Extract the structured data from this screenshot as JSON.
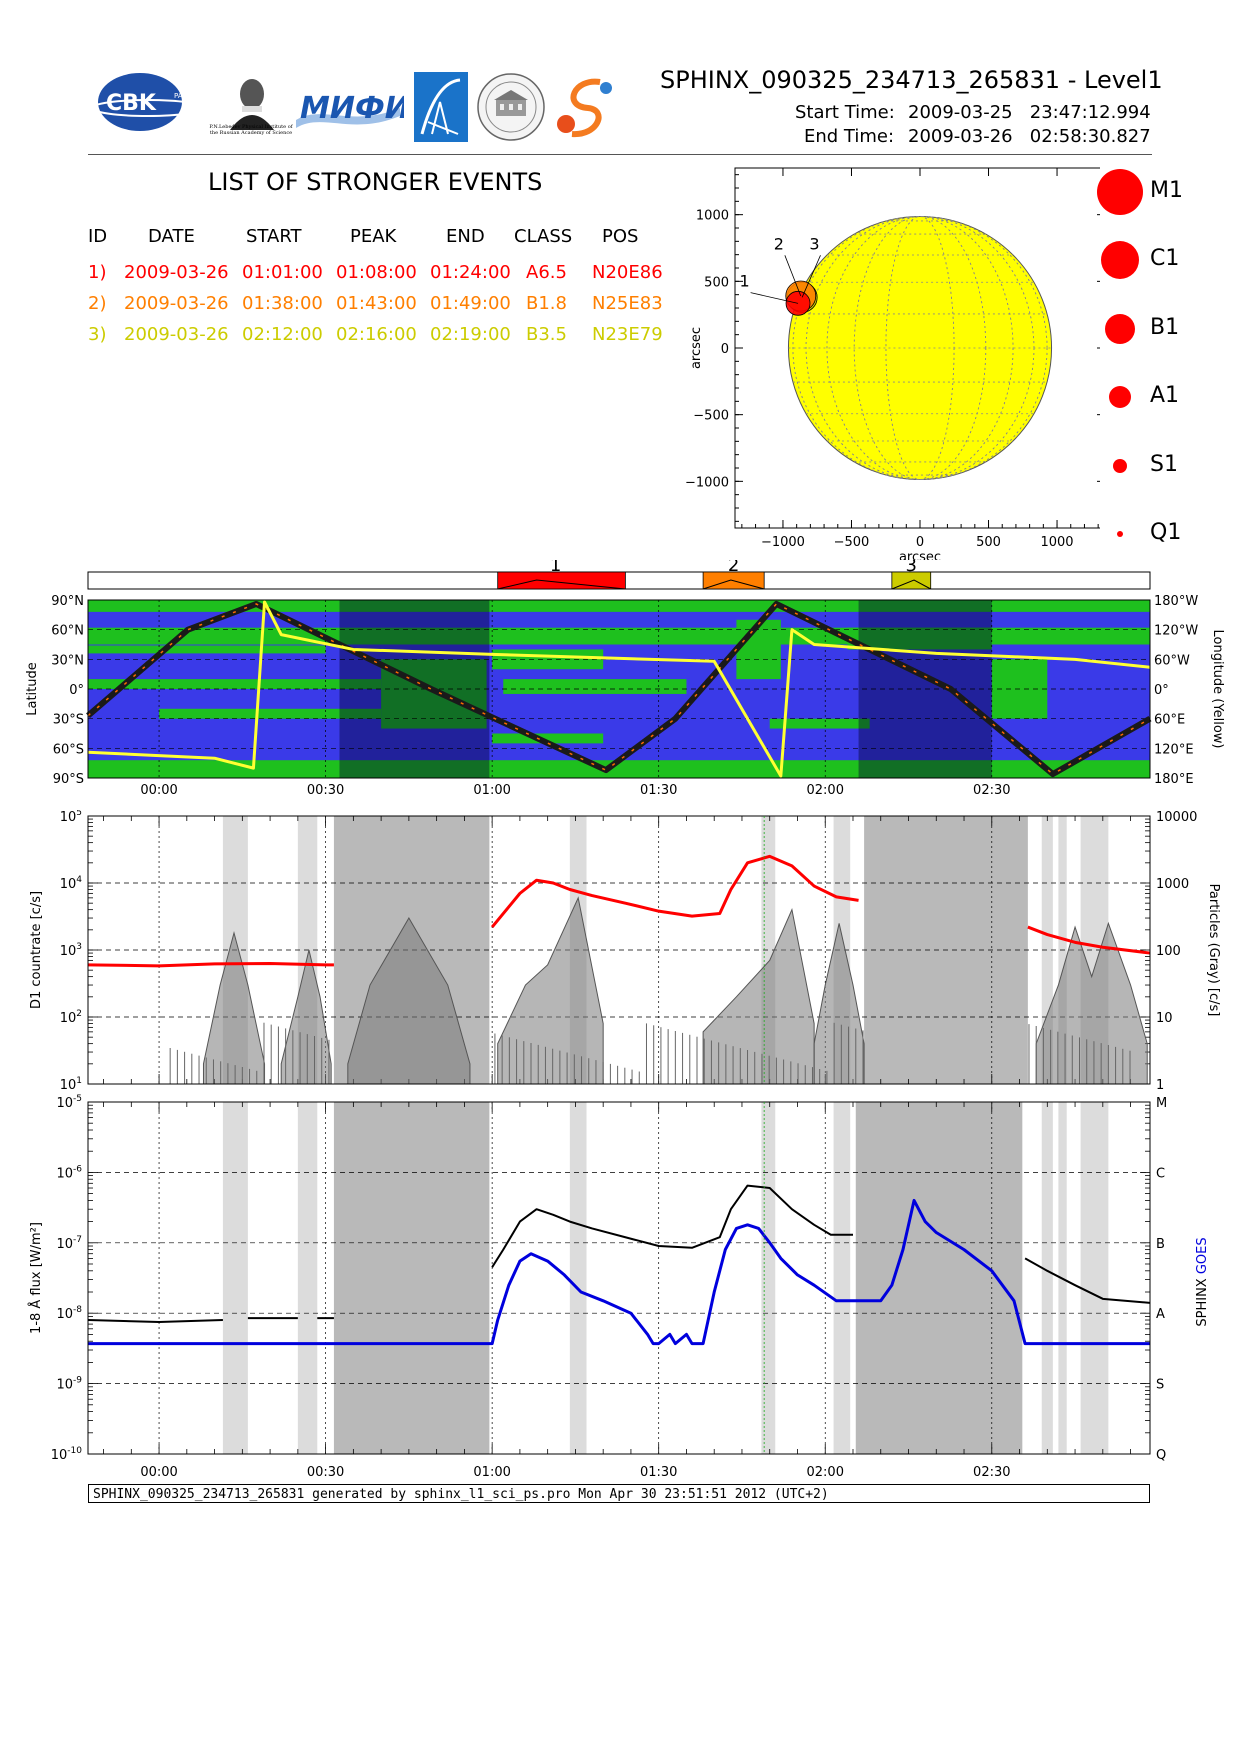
{
  "header": {
    "title": "SPHINX_090325_234713_265831 - Level1",
    "start_label": "Start Time:",
    "start_value": "2009-03-25   23:47:12.994",
    "end_label": "End Time:",
    "end_value": "2009-03-26   02:58:30.827"
  },
  "logos": {
    "cbk": "CBK",
    "cbk_small": "PAN",
    "lebedev_caption": "P.N.Lebedev Physical Institute of the Russian Academy of Science",
    "mifi": "MИФИ",
    "colors": {
      "cbk": "#1f4fa8",
      "mifi": "#1a56b0",
      "arrow": "#1a73c9"
    }
  },
  "events": {
    "title": "LIST OF STRONGER EVENTS",
    "columns": [
      "ID",
      "DATE",
      "START",
      "PEAK",
      "END",
      "CLASS",
      "POS"
    ],
    "rows": [
      {
        "id": "1)",
        "date": "2009-03-26",
        "start": "01:01:00",
        "peak": "01:08:00",
        "end": "01:24:00",
        "class": "A6.5",
        "pos": "N20E86",
        "color": "#ff0000"
      },
      {
        "id": "2)",
        "date": "2009-03-26",
        "start": "01:38:00",
        "peak": "01:43:00",
        "end": "01:49:00",
        "class": "B1.8",
        "pos": "N25E83",
        "color": "#ff7f00"
      },
      {
        "id": "3)",
        "date": "2009-03-26",
        "start": "02:12:00",
        "peak": "02:16:00",
        "end": "02:19:00",
        "class": "B3.5",
        "pos": "N23E79",
        "color": "#cccc00"
      }
    ]
  },
  "legend": {
    "classes": [
      {
        "label": "M1",
        "size": 46
      },
      {
        "label": "C1",
        "size": 38
      },
      {
        "label": "B1",
        "size": 30
      },
      {
        "label": "A1",
        "size": 22
      },
      {
        "label": "S1",
        "size": 14
      },
      {
        "label": "Q1",
        "size": 6
      }
    ]
  },
  "timeline": {
    "events": [
      {
        "id": "1",
        "start": 61.0,
        "peak": 68.0,
        "end": 84.0,
        "color": "#ff0000"
      },
      {
        "id": "2",
        "start": 98.0,
        "peak": 103.0,
        "end": 109.0,
        "color": "#ff7f00"
      },
      {
        "id": "3",
        "start": 132.0,
        "peak": 136.0,
        "end": 139.0,
        "color": "#cccc00"
      }
    ]
  },
  "footer": {
    "text": "SPHINX_090325_234713_265831 generated by sphinx_l1_sci_ps.pro Mon Apr 30 23:51:51 2012 (UTC+2)"
  },
  "chart_data": [
    {
      "type": "scatter",
      "name": "solar-disk-map",
      "xlabel": "arcsec",
      "ylabel": "arcsec",
      "xlim": [
        -1350,
        1350
      ],
      "ylim": [
        -1350,
        1350
      ],
      "xticks": [
        "-1000",
        "-500",
        "0",
        "500",
        "1000"
      ],
      "yticks": [
        "1000",
        "500",
        "0",
        "-500",
        "-1000"
      ],
      "disk_radius": 960,
      "disk_color": "#ffff00",
      "points": [
        {
          "label": "1",
          "x": -890,
          "y": 335,
          "size": 24,
          "color": "#ff0000"
        },
        {
          "label": "2",
          "x": -870,
          "y": 390,
          "size": 30,
          "color": "#ff7f00"
        },
        {
          "label": "3",
          "x": -860,
          "y": 380,
          "size": 30,
          "color": "#cccc00"
        }
      ],
      "labels": [
        {
          "text": "1",
          "x": -1280,
          "y": 460
        },
        {
          "text": "2",
          "x": -1030,
          "y": 740
        },
        {
          "text": "3",
          "x": -770,
          "y": 740
        }
      ]
    },
    {
      "type": "line",
      "name": "orbit-map",
      "x_unit": "minutes after 2009-03-26 00:00",
      "xlim": [
        -12.8,
        178.5
      ],
      "xticks": [
        "00:00",
        "00:30",
        "01:00",
        "01:30",
        "02:00",
        "02:30"
      ],
      "ylabel": "Latitude",
      "ylabel_right": "Longitude (Yellow)",
      "ylim": [
        -90,
        90
      ],
      "yticks": [
        "90°N",
        "60°N",
        "30°N",
        "0°",
        "30°S",
        "60°S",
        "90°S"
      ],
      "yticks_right": [
        "180°W",
        "120°W",
        "60°W",
        "0°",
        "60°E",
        "120°E",
        "180°E"
      ],
      "colors": {
        "ocean": "#3a3ae8",
        "land": "#1ec01e",
        "track": "#1a1a1a",
        "longitude": "#ffff33"
      },
      "track_lat": {
        "x": [
          -12.8,
          5.2,
          17.5,
          49.0,
          80.5,
          93.0,
          111.2,
          142.6,
          161.0,
          178.5
        ],
        "y": [
          -27,
          60,
          86,
          0,
          -82,
          -30,
          86,
          0,
          -86,
          -30
        ]
      },
      "longitude_curve": {
        "x": [
          -12.8,
          10,
          17,
          19,
          22,
          35,
          60,
          100,
          112,
          114,
          118,
          140,
          165,
          178.5
        ],
        "y": [
          -64,
          -70,
          -80,
          88,
          55,
          40,
          35,
          28,
          -88,
          60,
          45,
          36,
          30,
          22
        ]
      },
      "shaded": [
        [
          32.5,
          59.5
        ],
        [
          126.0,
          150.0
        ]
      ]
    },
    {
      "type": "line",
      "name": "d1-countrate",
      "x_unit": "minutes after 2009-03-26 00:00",
      "xlim": [
        -12.8,
        178.5
      ],
      "xticks": [
        "00:00",
        "00:30",
        "01:00",
        "01:30",
        "02:00",
        "02:30"
      ],
      "ylabel": "D1 countrate [c/s]",
      "ylabel_right": "Particles (Gray) [c/s]",
      "yscale": "log",
      "ylim": [
        10,
        100000
      ],
      "yticks": [
        "10^1",
        "10^2",
        "10^3",
        "10^4",
        "10^5"
      ],
      "yticks_right": [
        "1",
        "10",
        "100",
        "1000",
        "10000"
      ],
      "light_gray": [
        [
          11.5,
          16.0
        ],
        [
          25.0,
          28.5
        ],
        [
          74.0,
          77.0
        ],
        [
          108.5,
          111.0
        ],
        [
          121.5,
          124.5
        ],
        [
          159.0,
          161.0
        ],
        [
          162.0,
          163.5
        ],
        [
          166.0,
          171.0
        ]
      ],
      "dark_gray": [
        [
          31.5,
          59.5
        ],
        [
          127.0,
          156.5
        ]
      ],
      "series": [
        {
          "name": "red",
          "color": "#ff0000",
          "x": [
            -12.8,
            0,
            10,
            20,
            30,
            31.5
          ],
          "y": [
            600,
            580,
            620,
            630,
            600,
            600
          ]
        },
        {
          "name": "red",
          "color": "#ff0000",
          "x": [
            60,
            62,
            65,
            68,
            71,
            74,
            78,
            84,
            90,
            96,
            101,
            103,
            106,
            110,
            114,
            118,
            122,
            126
          ],
          "y": [
            2200,
            3500,
            7000,
            11000,
            10000,
            8000,
            6500,
            5000,
            3800,
            3200,
            3500,
            8000,
            20000,
            25000,
            18000,
            9000,
            6200,
            5500
          ]
        },
        {
          "name": "red",
          "color": "#ff0000",
          "x": [
            156.5,
            160,
            165,
            170,
            178.5
          ],
          "y": [
            2200,
            1700,
            1300,
            1100,
            900
          ]
        }
      ],
      "gray_bumps": [
        {
          "x": [
            8,
            11,
            13.5,
            16,
            19
          ],
          "y": [
            20,
            300,
            1800,
            300,
            20
          ]
        },
        {
          "x": [
            22,
            25,
            27,
            29,
            31
          ],
          "y": [
            20,
            200,
            1000,
            200,
            20
          ]
        },
        {
          "x": [
            34,
            38,
            45,
            52,
            56
          ],
          "y": [
            20,
            300,
            3000,
            300,
            20
          ]
        },
        {
          "x": [
            61,
            66,
            70,
            75.5,
            80
          ],
          "y": [
            40,
            300,
            600,
            6000,
            80
          ]
        },
        {
          "x": [
            98,
            104,
            110,
            114,
            118
          ],
          "y": [
            60,
            200,
            700,
            4000,
            80
          ]
        },
        {
          "x": [
            118,
            120,
            122.5,
            125,
            127
          ],
          "y": [
            40,
            300,
            2500,
            300,
            40
          ]
        },
        {
          "x": [
            158,
            162,
            165,
            168,
            171,
            175,
            178
          ],
          "y": [
            40,
            300,
            2200,
            400,
            2500,
            300,
            40
          ]
        }
      ]
    },
    {
      "type": "line",
      "name": "flux-1-8A",
      "x_unit": "minutes after 2009-03-26 00:00",
      "xlim": [
        -12.8,
        178.5
      ],
      "xticks": [
        "00:00",
        "00:30",
        "01:00",
        "01:30",
        "02:00",
        "02:30"
      ],
      "ylabel": "1-8 Å flux [W/m²]",
      "ylabel_right": "SPHINX GOES",
      "yscale": "log",
      "ylim": [
        1e-10,
        1e-05
      ],
      "yticks": [
        "10^-5",
        "10^-6",
        "10^-7",
        "10^-8",
        "10^-9",
        "10^-10"
      ],
      "yticks_right": [
        "M",
        "C",
        "B",
        "A",
        "S",
        "Q"
      ],
      "light_gray": [
        [
          11.5,
          16.0
        ],
        [
          25.0,
          28.5
        ],
        [
          74.0,
          77.0
        ],
        [
          108.5,
          111.0
        ],
        [
          121.5,
          124.5
        ],
        [
          159.0,
          161.0
        ],
        [
          162.0,
          163.5
        ],
        [
          166.0,
          171.0
        ]
      ],
      "dark_gray": [
        [
          31.5,
          59.5
        ],
        [
          125.5,
          155.5
        ]
      ],
      "series": [
        {
          "name": "SPHINX",
          "color": "#000000",
          "x": [
            -12.8,
            0,
            11.5
          ],
          "y": [
            8e-09,
            7.5e-09,
            8e-09
          ]
        },
        {
          "name": "SPHINX",
          "color": "#000000",
          "x": [
            16,
            25
          ],
          "y": [
            8.5e-09,
            8.5e-09
          ]
        },
        {
          "name": "SPHINX",
          "color": "#000000",
          "x": [
            28.5,
            31.5
          ],
          "y": [
            8.5e-09,
            8.5e-09
          ]
        },
        {
          "name": "SPHINX",
          "color": "#000000",
          "x": [
            60,
            62,
            65,
            68,
            71,
            74,
            78,
            84,
            90,
            96,
            101,
            103,
            106,
            110,
            114,
            118,
            121,
            125
          ],
          "y": [
            4.5e-08,
            8e-08,
            2e-07,
            3e-07,
            2.5e-07,
            2e-07,
            1.6e-07,
            1.2e-07,
            9e-08,
            8.5e-08,
            1.2e-07,
            3e-07,
            6.5e-07,
            6e-07,
            3e-07,
            1.8e-07,
            1.3e-07,
            1.3e-07
          ]
        },
        {
          "name": "SPHINX",
          "color": "#000000",
          "x": [
            156,
            160,
            165,
            170,
            178.5
          ],
          "y": [
            6e-08,
            4e-08,
            2.5e-08,
            1.6e-08,
            1.4e-08
          ]
        },
        {
          "name": "GOES",
          "color": "#0000dd",
          "x": [
            -12.8,
            60,
            61,
            63,
            65,
            67,
            70,
            73,
            76,
            80,
            85,
            88,
            89,
            90,
            92,
            93,
            95,
            96,
            98,
            100,
            102,
            104,
            106,
            108,
            110,
            112,
            115,
            118,
            122,
            126,
            130,
            132,
            134,
            136,
            138,
            140,
            145,
            150,
            154,
            156,
            178.5
          ],
          "y": [
            3.7e-09,
            3.7e-09,
            8e-09,
            2.5e-08,
            5.5e-08,
            7e-08,
            5.5e-08,
            3.5e-08,
            2e-08,
            1.5e-08,
            1e-08,
            5e-09,
            3.7e-09,
            3.7e-09,
            5e-09,
            3.7e-09,
            5e-09,
            3.7e-09,
            3.7e-09,
            2e-08,
            8e-08,
            1.6e-07,
            1.8e-07,
            1.6e-07,
            1e-07,
            6e-08,
            3.5e-08,
            2.5e-08,
            1.5e-08,
            1.5e-08,
            1.5e-08,
            2.5e-08,
            8e-08,
            4e-07,
            2e-07,
            1.4e-07,
            8e-08,
            4e-08,
            1.5e-08,
            3.7e-09,
            3.7e-09
          ]
        }
      ]
    }
  ]
}
